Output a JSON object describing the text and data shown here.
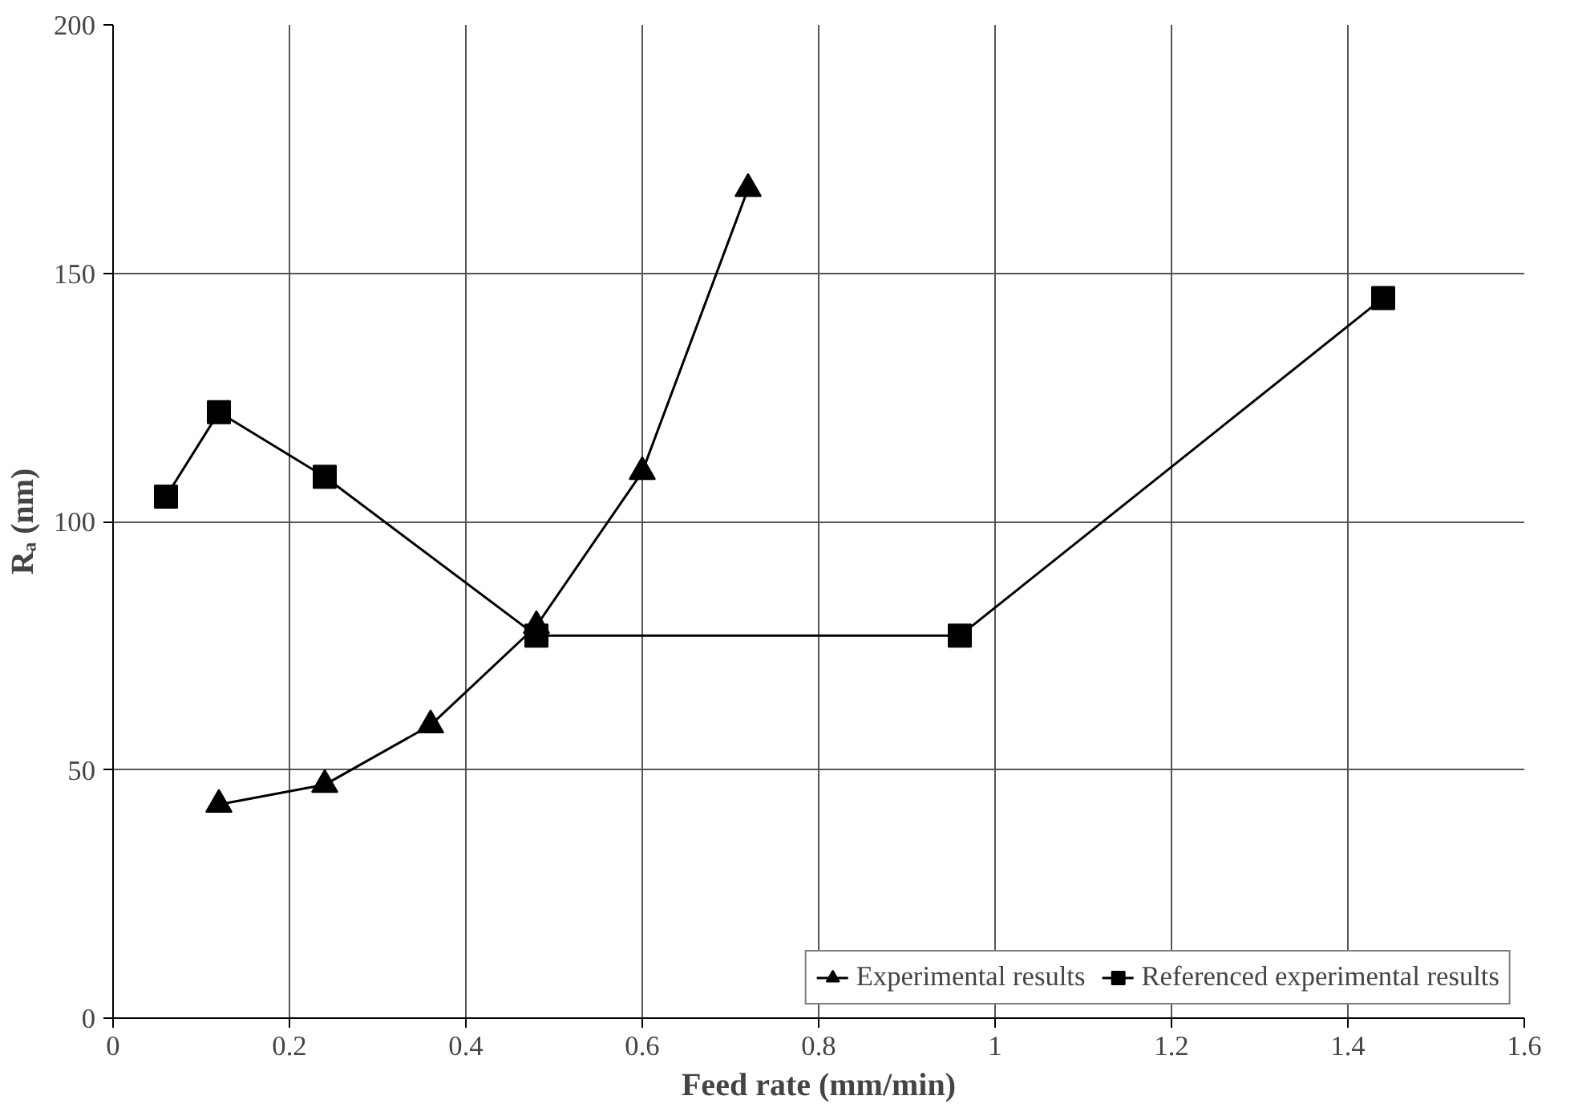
{
  "chart_data": {
    "type": "line",
    "xlabel": "Feed rate (mm/min)",
    "ylabel": "Rₐ (nm)",
    "xlim": [
      0,
      1.6
    ],
    "ylim": [
      0,
      200
    ],
    "xticks": [
      0,
      0.2,
      0.4,
      0.6,
      0.8,
      1,
      1.2,
      1.4,
      1.6
    ],
    "yticks": [
      0,
      50,
      100,
      150,
      200
    ],
    "grid": true,
    "legend": "bottom right",
    "line_style": "solid",
    "series": [
      {
        "name": "Experimental results",
        "color": "#000000",
        "marker": "triangle",
        "x": [
          0.12,
          0.24,
          0.36,
          0.48,
          0.6,
          0.72
        ],
        "values": [
          43,
          47,
          59,
          79,
          110,
          167
        ]
      },
      {
        "name": "Referenced experimental results",
        "color": "#000000",
        "marker": "square",
        "x": [
          0.06,
          0.12,
          0.24,
          0.48,
          0.96,
          1.44
        ],
        "values": [
          105,
          122,
          109,
          77,
          77,
          145
        ]
      }
    ]
  }
}
